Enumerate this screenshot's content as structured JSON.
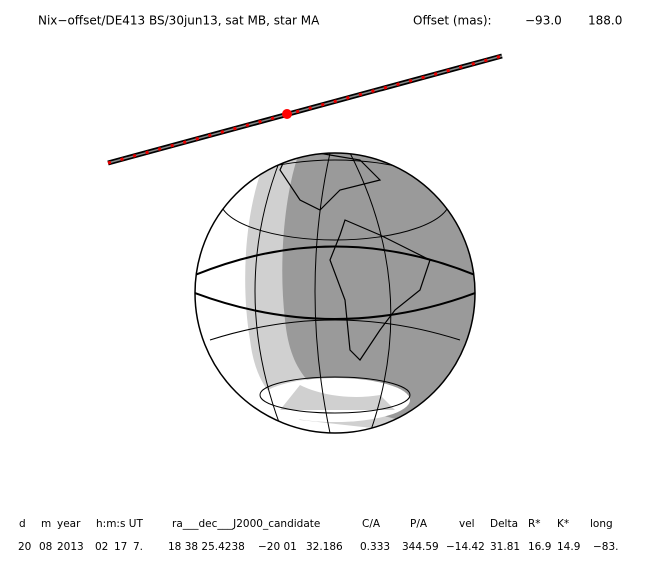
{
  "header": {
    "title": "Nix−offset/DE413 BS/30jun13, sat MB, star MA",
    "offset_label": "Offset (mas):",
    "offset_values": [
      "−93.0",
      "188.0"
    ]
  },
  "table": {
    "headers": [
      "d",
      "m",
      "year",
      "h:m:s UT",
      "ra___dec___J2000_candidate",
      "C/A",
      "P/A",
      "vel",
      "Delta",
      "R*",
      "K*",
      "long"
    ],
    "row": [
      "20",
      "08",
      "2013",
      "02",
      "17",
      "7.",
      "18 38 25.4238",
      "−20 01",
      "32.186",
      "0.333",
      "344.59",
      "−14.42",
      "31.81",
      "16.9",
      "14.9",
      "−83."
    ]
  }
}
